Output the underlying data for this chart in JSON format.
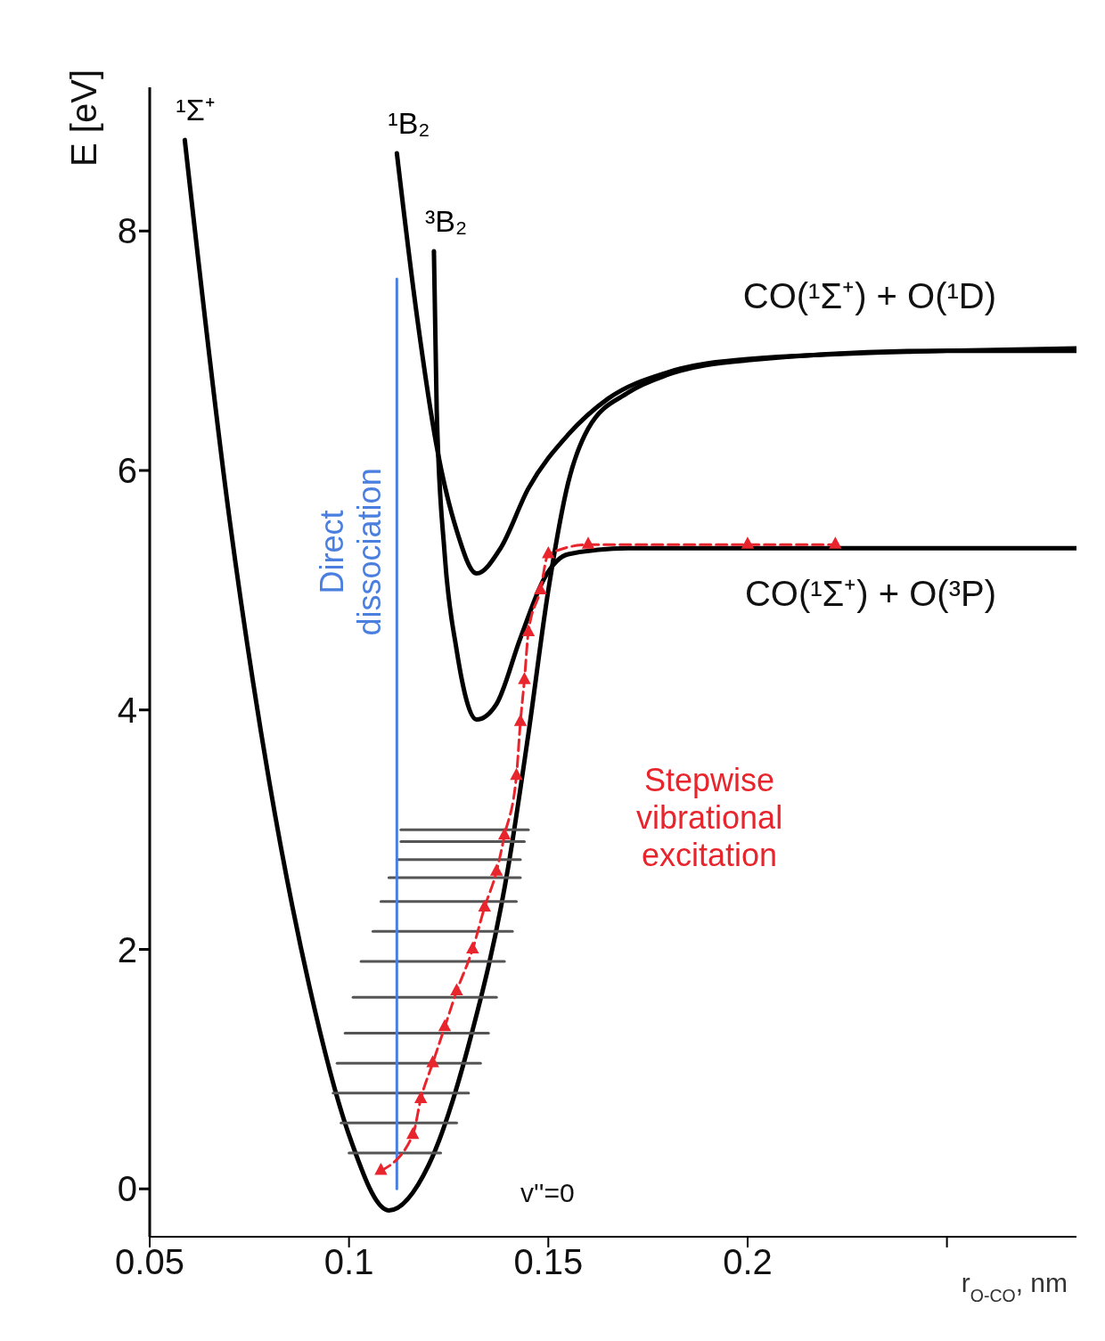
{
  "chart_data": {
    "type": "line",
    "xlabel": "r$_{O-CO}$, nm",
    "ylabel": "E [eV]",
    "xlim": [
      0.05,
      0.2825
    ],
    "xticks": [
      {
        "value": 0.05,
        "label": "0.05"
      },
      {
        "value": 0.1,
        "label": "0.1"
      },
      {
        "value": 0.15,
        "label": "0.15"
      },
      {
        "value": 0.2,
        "label": "0.2"
      },
      {
        "value": 0.25,
        "label": null
      }
    ],
    "ylim": [
      -0.4,
      9.2
    ],
    "yticks": [
      0,
      2,
      4,
      6,
      8
    ],
    "marker": "none",
    "line_style": "solid",
    "series": [
      {
        "name": "¹Σ⁺",
        "color": "#000000",
        "x": [
          0.0588,
          0.07,
          0.08,
          0.09,
          0.1,
          0.11,
          0.12,
          0.13,
          0.14,
          0.145,
          0.15,
          0.155,
          0.16,
          0.17,
          0.18,
          0.2,
          0.25,
          0.2825
        ],
        "values": [
          8.76,
          5.6,
          3.4,
          1.7,
          0.45,
          -0.18,
          0.2,
          1.2,
          2.7,
          3.8,
          5.0,
          5.9,
          6.35,
          6.65,
          6.8,
          6.92,
          7.0,
          7.0
        ]
      },
      {
        "name": "¹B₂",
        "color": "#000000",
        "x": [
          0.112,
          0.117,
          0.122,
          0.127,
          0.132,
          0.138,
          0.145,
          0.155,
          0.165,
          0.18,
          0.2,
          0.25,
          0.2825
        ],
        "values": [
          8.65,
          7.3,
          6.2,
          5.5,
          5.14,
          5.35,
          5.85,
          6.3,
          6.6,
          6.82,
          6.93,
          7.0,
          7.02
        ]
      },
      {
        "name": "³B₂",
        "color": "#000000",
        "x": [
          0.1213,
          0.122,
          0.124,
          0.127,
          0.132,
          0.137,
          0.143,
          0.149,
          0.155,
          0.17,
          0.2825
        ],
        "values": [
          7.83,
          6.5,
          5.3,
          4.5,
          3.92,
          4.05,
          4.6,
          5.1,
          5.3,
          5.35,
          5.35
        ]
      },
      {
        "color": "#555555",
        "x": [
          0.1,
          0.123
        ],
        "values": [
          0.3,
          0.3
        ]
      },
      {
        "color": "#555555",
        "x": [
          0.098,
          0.127
        ],
        "values": [
          0.55,
          0.55
        ]
      },
      {
        "color": "#555555",
        "x": [
          0.096,
          0.13
        ],
        "values": [
          0.8,
          0.8
        ]
      },
      {
        "color": "#555555",
        "x": [
          0.097,
          0.133
        ],
        "values": [
          1.05,
          1.05
        ]
      },
      {
        "color": "#555555",
        "x": [
          0.099,
          0.135
        ],
        "values": [
          1.3,
          1.3
        ]
      },
      {
        "color": "#555555",
        "x": [
          0.101,
          0.137
        ],
        "values": [
          1.6,
          1.6
        ]
      },
      {
        "color": "#555555",
        "x": [
          0.103,
          0.139
        ],
        "values": [
          1.9,
          1.9
        ]
      },
      {
        "color": "#555555",
        "x": [
          0.106,
          0.141
        ],
        "values": [
          2.15,
          2.15
        ]
      },
      {
        "color": "#555555",
        "x": [
          0.108,
          0.142
        ],
        "values": [
          2.4,
          2.4
        ]
      },
      {
        "color": "#555555",
        "x": [
          0.11,
          0.143
        ],
        "values": [
          2.6,
          2.6
        ]
      },
      {
        "color": "#555555",
        "x": [
          0.112,
          0.143
        ],
        "values": [
          2.75,
          2.75
        ]
      },
      {
        "color": "#555555",
        "x": [
          0.113,
          0.144
        ],
        "values": [
          2.9,
          2.9
        ]
      },
      {
        "color": "#555555",
        "x": [
          0.113,
          0.145
        ],
        "values": [
          3.0,
          3.0
        ]
      },
      {
        "name": "Direct dissociation",
        "color": "#4a7fe0",
        "x": [
          0.112,
          0.112
        ],
        "values": [
          0,
          7.6
        ]
      },
      {
        "name": "Stepwise vibrational excitation",
        "color": "#e8242c",
        "line_style": "dashed",
        "marker": "triangle",
        "x": [
          0.108,
          0.116,
          0.118,
          0.121,
          0.124,
          0.127,
          0.131,
          0.134,
          0.137,
          0.139,
          0.142,
          0.143,
          0.144,
          0.145,
          0.148,
          0.15,
          0.16,
          0.2,
          0.222
        ],
        "values": [
          0.15,
          0.45,
          0.75,
          1.05,
          1.35,
          1.65,
          2.0,
          2.35,
          2.65,
          2.95,
          3.45,
          3.9,
          4.25,
          4.65,
          5.0,
          5.3,
          5.38,
          5.38,
          5.38
        ]
      }
    ],
    "annotations": [
      {
        "text": "CO(¹Σ⁺) + O(¹D)",
        "x": 0.2825,
        "y": 7.02
      },
      {
        "text": "CO(¹Σ⁺) + O(³P)",
        "x": 0.2825,
        "y": 5.35
      },
      "v''=0"
    ]
  }
}
